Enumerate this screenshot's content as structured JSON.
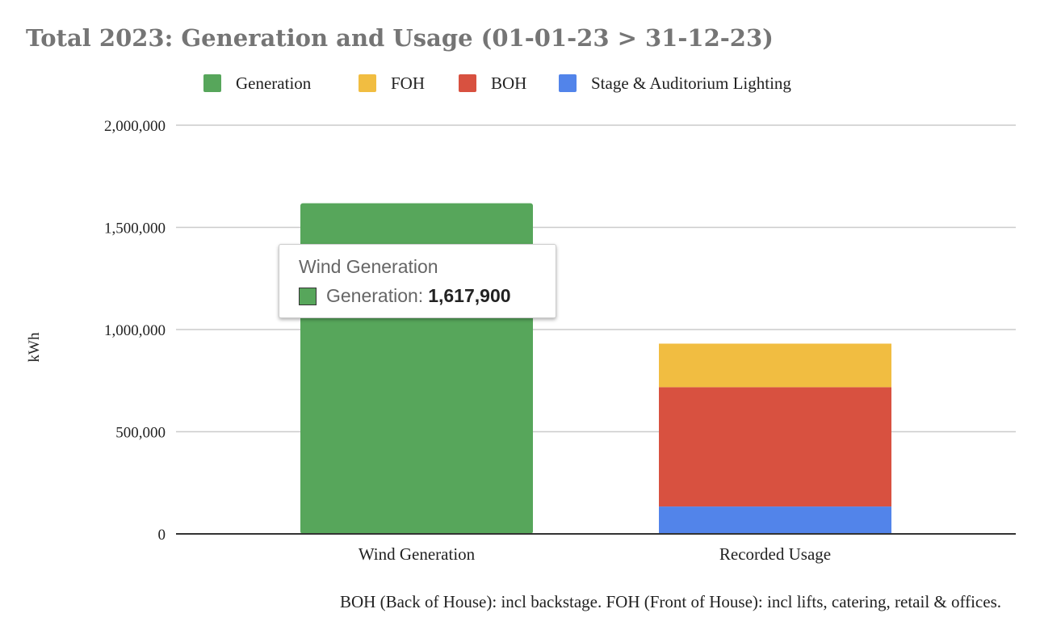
{
  "chart_data": {
    "type": "bar",
    "stacked": true,
    "title": "Total 2023: Generation and Usage (01-01-23 > 31-12-23)",
    "ylabel": "kWh",
    "xlabel": "",
    "ylim": [
      0,
      2000000
    ],
    "yticks": [
      0,
      500000,
      1000000,
      1500000,
      2000000
    ],
    "ytick_labels": [
      "0",
      "500,000",
      "1,000,000",
      "1,500,000",
      "2,000,000"
    ],
    "categories": [
      "Wind Generation",
      "Recorded Usage"
    ],
    "series": [
      {
        "name": "Generation",
        "color": "#57a65b",
        "values": [
          1617900,
          0
        ]
      },
      {
        "name": "Stage & Auditorium Lighting",
        "color": "#5284ea",
        "values": [
          0,
          134000
        ]
      },
      {
        "name": "BOH",
        "color": "#d85140",
        "values": [
          0,
          584000
        ]
      },
      {
        "name": "FOH",
        "color": "#f1bd41",
        "values": [
          0,
          213000
        ]
      }
    ],
    "legend_order": [
      "Generation",
      "FOH",
      "BOH",
      "Stage & Auditorium Lighting"
    ],
    "legend_position": "top",
    "grid": true,
    "footnote": "BOH (Back of House): incl backstage. FOH (Front of House): incl lifts, catering, retail & offices.",
    "tooltip": {
      "title": "Wind Generation",
      "series": "Generation:",
      "value": "1,617,900"
    }
  }
}
